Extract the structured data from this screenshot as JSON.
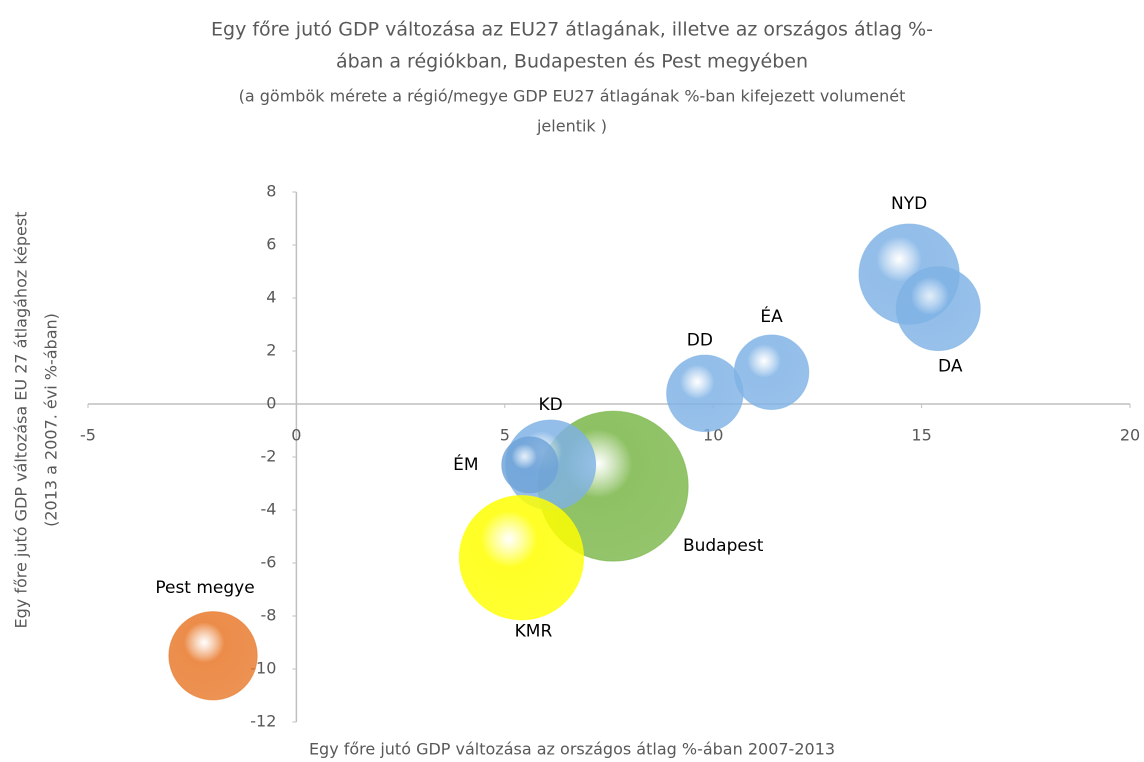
{
  "chart_data": {
    "type": "bubble",
    "title": [
      "Egy főre jutó GDP változása az EU27 átlagának, illetve az országos átlag %-",
      "ában a régiókban, Budapesten és Pest megyében"
    ],
    "subtitle": [
      "(a gömbök mérete a régió/megye GDP EU27 átlagának %-ban kifejezett volumenét",
      "jelentik )"
    ],
    "x_label": "Egy főre jutó GDP változása az országos átlag %-ában 2007-2013",
    "y_label": [
      "Egy főre jutó GDP változása EU 27 átlagához képest",
      "(2013 a 2007. évi %-ában)"
    ],
    "xlim": [
      -5,
      20
    ],
    "xticks": [
      -5,
      0,
      5,
      10,
      15,
      20
    ],
    "ylim": [
      -12,
      8
    ],
    "yticks": [
      -12,
      -10,
      -8,
      -6,
      -4,
      -2,
      0,
      2,
      4,
      6,
      8
    ],
    "grid": false,
    "points": [
      {
        "name": "NYD",
        "x": 14.7,
        "y": 4.9,
        "size": 67,
        "color": "#7fb2e5"
      },
      {
        "name": "DA",
        "x": 15.4,
        "y": 3.6,
        "size": 47,
        "color": "#7fb2e5"
      },
      {
        "name": "ÉA",
        "x": 11.4,
        "y": 1.2,
        "size": 37,
        "color": "#7fb2e5"
      },
      {
        "name": "DD",
        "x": 9.8,
        "y": 0.4,
        "size": 39,
        "color": "#7fb2e5"
      },
      {
        "name": "Budapest",
        "x": 7.6,
        "y": -3.1,
        "size": 150,
        "color": "#7ab648"
      },
      {
        "name": "KD",
        "x": 6.1,
        "y": -2.3,
        "size": 54,
        "color": "#7fb2e5"
      },
      {
        "name": "ÉM",
        "x": 5.6,
        "y": -2.3,
        "size": 21,
        "color": "#6fa3d8"
      },
      {
        "name": "KMR",
        "x": 5.4,
        "y": -5.8,
        "size": 103,
        "color": "#ffff00"
      },
      {
        "name": "Pest megye",
        "x": -2.0,
        "y": -9.5,
        "size": 52,
        "color": "#e8782a"
      }
    ]
  }
}
